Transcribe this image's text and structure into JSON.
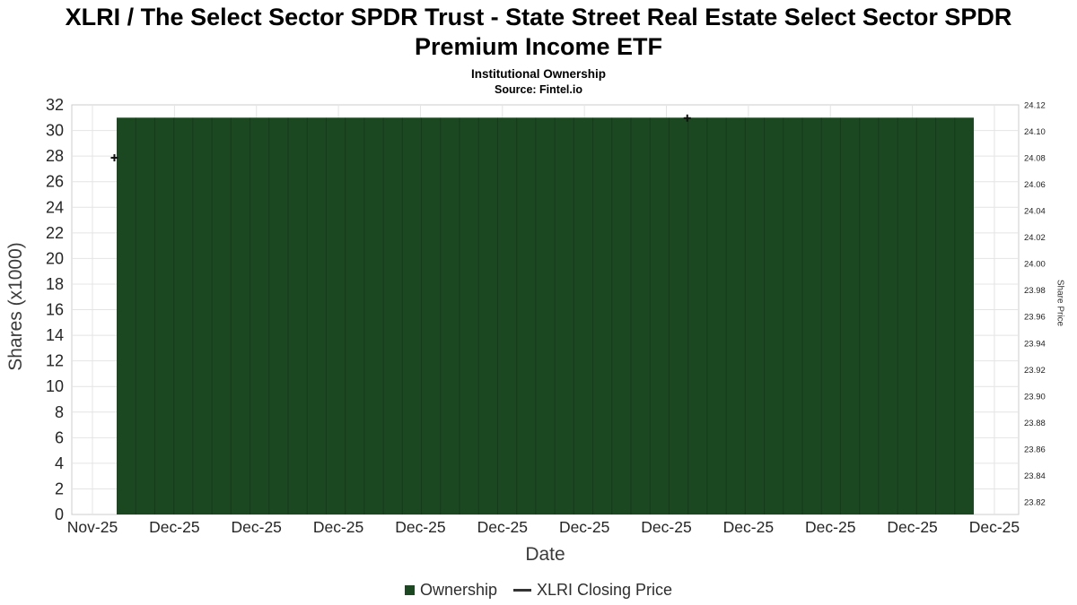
{
  "header": {
    "title_line1": "XLRI / The Select Sector SPDR Trust - State Street Real Estate Select Sector SPDR",
    "title_line2": "Premium Income ETF",
    "subtitle": "Institutional Ownership",
    "source": "Source: Fintel.io"
  },
  "chart_data": {
    "type": "bar",
    "title": "XLRI / The Select Sector SPDR Trust - State Street Real Estate Select Sector SPDR Premium Income ETF",
    "subtitle": "Institutional Ownership",
    "source": "Source: Fintel.io",
    "grid": true,
    "x_axis": {
      "label": "Date",
      "tick_labels": [
        "Nov-25",
        "Dec-25",
        "Dec-25",
        "Dec-25",
        "Dec-25",
        "Dec-25",
        "Dec-25",
        "Dec-25",
        "Dec-25",
        "Dec-25",
        "Dec-25",
        "Dec-25"
      ]
    },
    "left_axis": {
      "label": "Shares (x1000)",
      "min": 0,
      "max": 32,
      "tick_step": 2,
      "tick_labels": [
        "0",
        "2",
        "4",
        "6",
        "8",
        "10",
        "12",
        "14",
        "16",
        "18",
        "20",
        "22",
        "24",
        "26",
        "28",
        "30",
        "32"
      ]
    },
    "right_axis": {
      "label": "Share Price",
      "tick_labels": [
        "24.12",
        "24.10",
        "24.08",
        "24.06",
        "24.04",
        "24.02",
        "24.00",
        "23.98",
        "23.96",
        "23.94",
        "23.92",
        "23.90",
        "23.88",
        "23.86",
        "23.84",
        "23.82"
      ]
    },
    "series": [
      {
        "name": "Ownership",
        "type": "bar",
        "color": "#1b4721",
        "value_x1000": 31,
        "bar_count": 45,
        "note": "constant institutional ownership of ~31k shares across all plotted dates"
      },
      {
        "name": "XLRI Closing Price",
        "type": "line",
        "color": "#111111",
        "visible_points": [
          {
            "x_fraction": 0.045,
            "price": 24.08
          },
          {
            "x_fraction": 0.65,
            "price": 24.11
          }
        ]
      }
    ],
    "legend": {
      "position": "bottom-center",
      "items": [
        {
          "label": "Ownership",
          "swatch": "square",
          "color": "#1b4721"
        },
        {
          "label": "XLRI Closing Price",
          "swatch": "line",
          "color": "#333333"
        }
      ]
    },
    "ylim_left": [
      0,
      32
    ],
    "ylim_right": [
      23.81,
      24.125
    ]
  },
  "colors": {
    "bar_green": "#1b4721",
    "grid": "#e4e4e4",
    "plot_border": "#cccccc",
    "tick_text": "#262626"
  }
}
